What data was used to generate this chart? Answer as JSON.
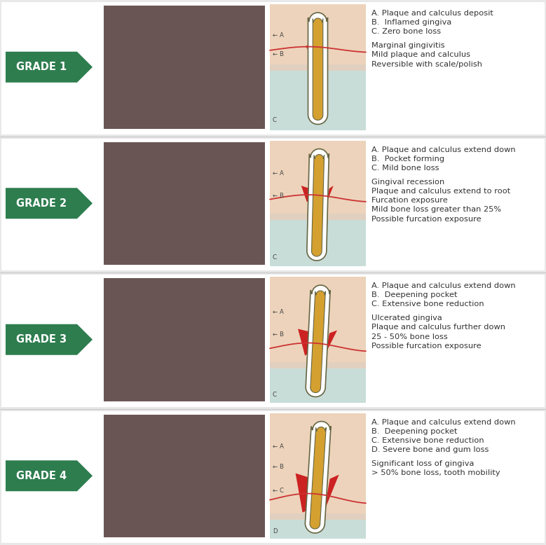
{
  "background_color": "#e8e8e8",
  "grade_bg_color": "#2e7d4f",
  "grade_text_color": "#ffffff",
  "grades": [
    "GRADE 1",
    "GRADE 2",
    "GRADE 3",
    "GRADE 4"
  ],
  "bullet_points": [
    [
      "A. Plaque and calculus deposit",
      "B.  Inflamed gingiva",
      "C. Zero bone loss",
      "",
      "Marginal gingivitis",
      "Mild plaque and calculus",
      "Reversible with scale/polish"
    ],
    [
      "A. Plaque and calculus extend down",
      "B.  Pocket forming",
      "C. Mild bone loss",
      "",
      "Gingival recession",
      "Plaque and calculus extend to root",
      "Furcation exposure",
      "Mild bone loss greater than 25%",
      "Possible furcation exposure"
    ],
    [
      "A. Plaque and calculus extend down",
      "B.  Deepening pocket",
      "C. Extensive bone reduction",
      "",
      "Ulcerated gingiva",
      "Plaque and calculus further down",
      "25 - 50% bone loss",
      "Possible furcation exposure"
    ],
    [
      "A. Plaque and calculus extend down",
      "B.  Deepening pocket",
      "C. Extensive bone reduction",
      "D. Severe bone and gum loss",
      "",
      "Significant loss of gingiva",
      "> 50% bone loss, tooth mobility"
    ]
  ],
  "diag_bg_top": "#e8e4cc",
  "diag_bg_bot": "#c8ddd8",
  "gum_color": "#f2c8b0",
  "red_color": "#cc2222",
  "tooth_outer_color": "#ffffff",
  "tooth_inner_color": "#d4a030",
  "tooth_outline_color": "#666644",
  "gum_line_color": "#cc3333",
  "label_color": "#444444"
}
